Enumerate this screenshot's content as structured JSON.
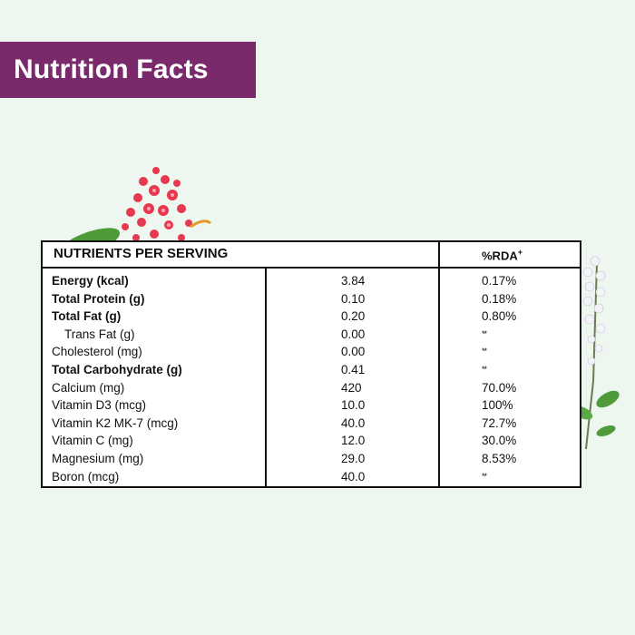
{
  "banner": {
    "title": "Nutrition Facts"
  },
  "table": {
    "header_left": "NUTRIENTS PER SERVING",
    "header_right": "%RDA",
    "header_right_mark": "+",
    "rows": [
      {
        "name": "Energy (kcal)",
        "value": "3.84",
        "rda": "0.17%",
        "bold": true
      },
      {
        "name": "Total Protein (g)",
        "value": "0.10",
        "rda": "0.18%",
        "bold": true
      },
      {
        "name": "Total Fat (g)",
        "value": "0.20",
        "rda": "0.80%",
        "bold": true
      },
      {
        "name": "Trans Fat (g)",
        "value": "0.00",
        "rda": "**",
        "indent": true
      },
      {
        "name": "Cholesterol (mg)",
        "value": "0.00",
        "rda": "**"
      },
      {
        "name": "Total Carbohydrate (g)",
        "value": "0.41",
        "rda": "**",
        "bold": true
      },
      {
        "name": "Calcium (mg)",
        "value": "420",
        "rda": "70.0%"
      },
      {
        "name": "Vitamin D3 (mcg)",
        "value": "10.0",
        "rda": "100%"
      },
      {
        "name": "Vitamin K2 MK-7 (mcg)",
        "value": "40.0",
        "rda": "72.7%"
      },
      {
        "name": "Vitamin C (mg)",
        "value": "12.0",
        "rda": "30.0%"
      },
      {
        "name": "Magnesium (mg)",
        "value": "29.0",
        "rda": "8.53%"
      },
      {
        "name": "Boron (mcg)",
        "value": "40.0",
        "rda": "**"
      }
    ]
  },
  "colors": {
    "banner_bg": "#7a2a6b",
    "page_bg": "#edf7ef",
    "flower": "#e8384f"
  },
  "decor": {
    "left": "red-flower-cluster-icon",
    "right": "white-flower-herb-icon"
  }
}
